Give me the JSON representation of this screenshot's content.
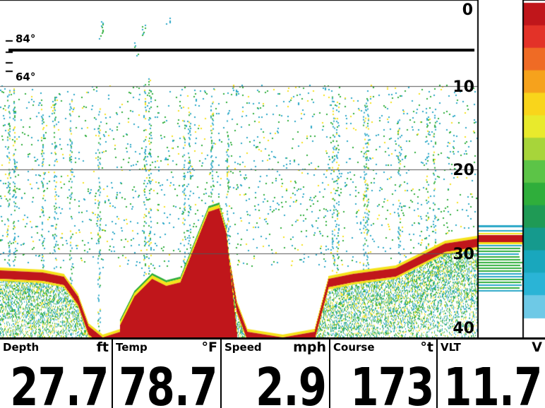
{
  "depth_scale": [
    "0",
    "10",
    "20",
    "30",
    "40"
  ],
  "temperature_marks": [
    "84°",
    "64°"
  ],
  "readouts": [
    {
      "label": "Depth",
      "unit": "ft",
      "value": "27.7"
    },
    {
      "label": "Temp",
      "unit": "°F",
      "value": "78.7"
    },
    {
      "label": "Speed",
      "unit": "mph",
      "value": "2.9"
    },
    {
      "label": "Course",
      "unit": "°t",
      "value": "173"
    },
    {
      "label": "VLT",
      "unit": "V",
      "value": "11.7"
    }
  ],
  "colors": {
    "bottom_return": "#c0161b",
    "mid_return": "#f5e21a",
    "weak_return": "#2aa8c8",
    "green_return": "#2fae3b",
    "color_scale": [
      "#c0161b",
      "#e33228",
      "#ef6b25",
      "#f6a21c",
      "#f9d51b",
      "#e8ea2c",
      "#a7d53a",
      "#5cc447",
      "#2fae3b",
      "#1f9a55",
      "#159a8d",
      "#19a7bd",
      "#2ab4d6",
      "#6ec9e6"
    ]
  }
}
